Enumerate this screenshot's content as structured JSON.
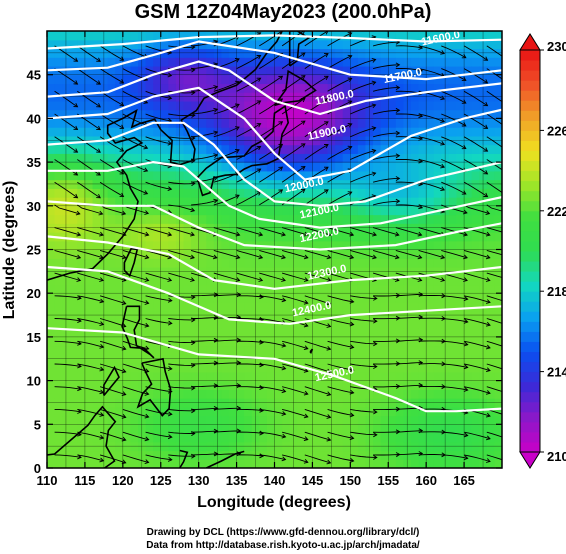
{
  "title": "GSM 12Z04May2023 (200.0hPa)",
  "credits": {
    "line1": "Drawing by DCL (https://www.gfd-dennou.org/library/dcl/)",
    "line2": "Data from http://database.rish.kyoto-u.ac.jp/arch/jmadata/"
  },
  "chart_data": {
    "type": "heatmap",
    "xlabel": "Longitude (degrees)",
    "ylabel": "Latitude (degrees)",
    "xlim": [
      110,
      170
    ],
    "ylim": [
      0,
      50
    ],
    "x_ticks": [
      110,
      115,
      120,
      125,
      130,
      135,
      140,
      145,
      150,
      155,
      160,
      165
    ],
    "y_ticks": [
      0,
      5,
      10,
      15,
      20,
      25,
      30,
      35,
      40,
      45
    ],
    "colorbar": {
      "min": 210,
      "max": 230,
      "ticks": [
        210,
        214,
        218,
        222,
        226,
        230
      ],
      "colors": [
        "#c800c8",
        "#8c18c8",
        "#3a2ad8",
        "#0a50f0",
        "#0aa0f0",
        "#12d8c0",
        "#30dc50",
        "#40e040",
        "#a0e628",
        "#f0e020",
        "#f0a028",
        "#f05028",
        "#e81414"
      ]
    },
    "contour_labels": [
      {
        "lon": 162,
        "lat": 48.8,
        "text": "11600.0"
      },
      {
        "lon": 157,
        "lat": 44.5,
        "text": "11700.0"
      },
      {
        "lon": 148,
        "lat": 42.0,
        "text": "11800.0"
      },
      {
        "lon": 147,
        "lat": 38.0,
        "text": "11900.0"
      },
      {
        "lon": 144,
        "lat": 32.0,
        "text": "12000.0"
      },
      {
        "lon": 146,
        "lat": 29.0,
        "text": "12100.0"
      },
      {
        "lon": 146,
        "lat": 26.3,
        "text": "12200.0"
      },
      {
        "lon": 147,
        "lat": 22.0,
        "text": "12300.0"
      },
      {
        "lon": 145,
        "lat": 17.8,
        "text": "12400.0"
      },
      {
        "lon": 148,
        "lat": 10.4,
        "text": "12500.0"
      }
    ]
  }
}
